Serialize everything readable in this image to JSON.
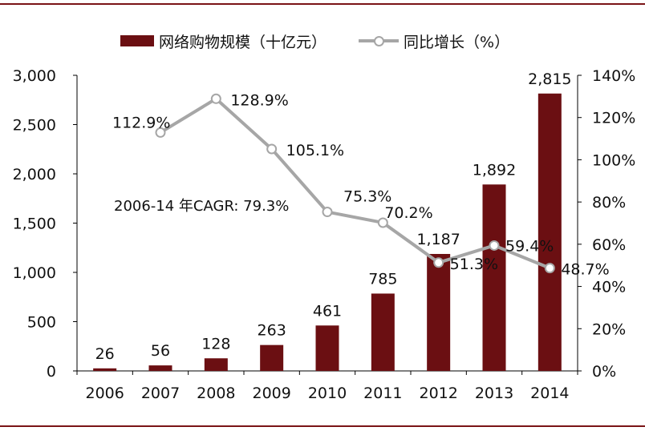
{
  "chart_data": {
    "type": "bar+line",
    "categories": [
      "2006",
      "2007",
      "2008",
      "2009",
      "2010",
      "2011",
      "2012",
      "2013",
      "2014"
    ],
    "series": [
      {
        "name": "网络购物规模（十亿元）",
        "type": "bar",
        "axis": "left",
        "color": "#6b0f12",
        "values": [
          26,
          56,
          128,
          263,
          461,
          785,
          1187,
          1892,
          2815
        ],
        "labels": [
          "26",
          "56",
          "128",
          "263",
          "461",
          "785",
          "1,187",
          "1,892",
          "2,815"
        ]
      },
      {
        "name": "同比增长（%）",
        "type": "line",
        "axis": "right",
        "color": "#a6a6a6",
        "values": [
          null,
          112.9,
          128.9,
          105.1,
          75.3,
          70.2,
          51.3,
          59.4,
          48.7
        ],
        "labels": [
          null,
          "112.9%",
          "128.9%",
          "105.1%",
          "75.3%",
          "70.2%",
          "51.3%",
          "59.4%",
          "48.7%"
        ]
      }
    ],
    "annotation": "2006-14 年CAGR: 79.3%",
    "y_left": {
      "range": [
        0,
        3000
      ],
      "ticks": [
        0,
        500,
        1000,
        1500,
        2000,
        2500,
        3000
      ],
      "tick_labels": [
        "0",
        "500",
        "1,000",
        "1,500",
        "2,000",
        "2,500",
        "3,000"
      ]
    },
    "y_right": {
      "range": [
        0,
        140
      ],
      "ticks": [
        0,
        20,
        40,
        60,
        80,
        100,
        120,
        140
      ],
      "tick_labels": [
        "0%",
        "20%",
        "40%",
        "60%",
        "80%",
        "100%",
        "120%",
        "140%"
      ]
    },
    "grid": false,
    "legend_position": "top"
  }
}
